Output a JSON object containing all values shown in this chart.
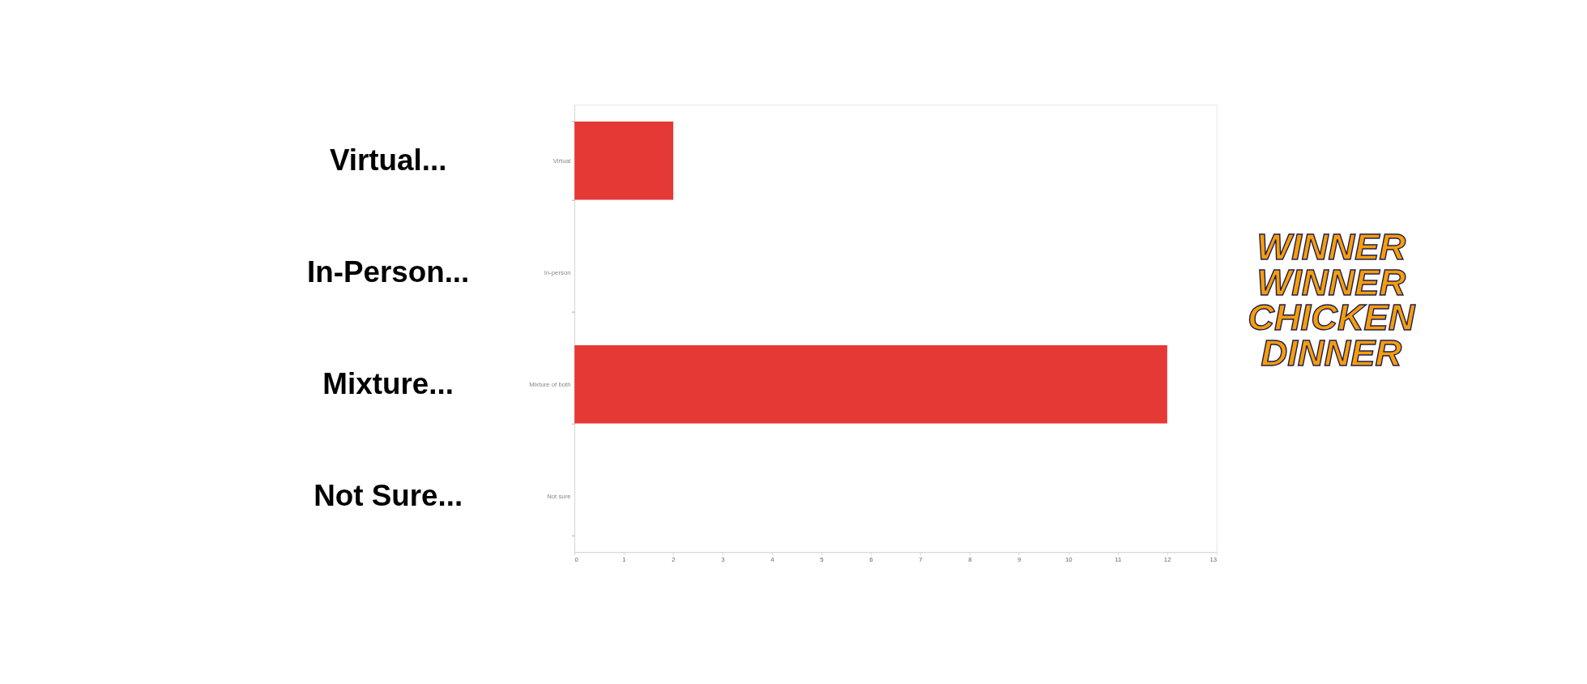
{
  "chart_data": {
    "type": "bar",
    "orientation": "horizontal",
    "categories": [
      "Virtual",
      "In-person",
      "Mixture of both",
      "Not sure"
    ],
    "values": [
      2,
      0,
      12,
      0
    ],
    "color": "#e53935",
    "xlim": [
      0,
      13
    ],
    "xticks": [
      0,
      1,
      2,
      3,
      4,
      5,
      6,
      7,
      8,
      9,
      10,
      11,
      12,
      13
    ],
    "grid": false,
    "annotations": [
      "Virtual...",
      "In-Person...",
      "Mixture...",
      "Not Sure...",
      "WINNER",
      "WINNER",
      "CHICKEN",
      "DINNER"
    ]
  }
}
